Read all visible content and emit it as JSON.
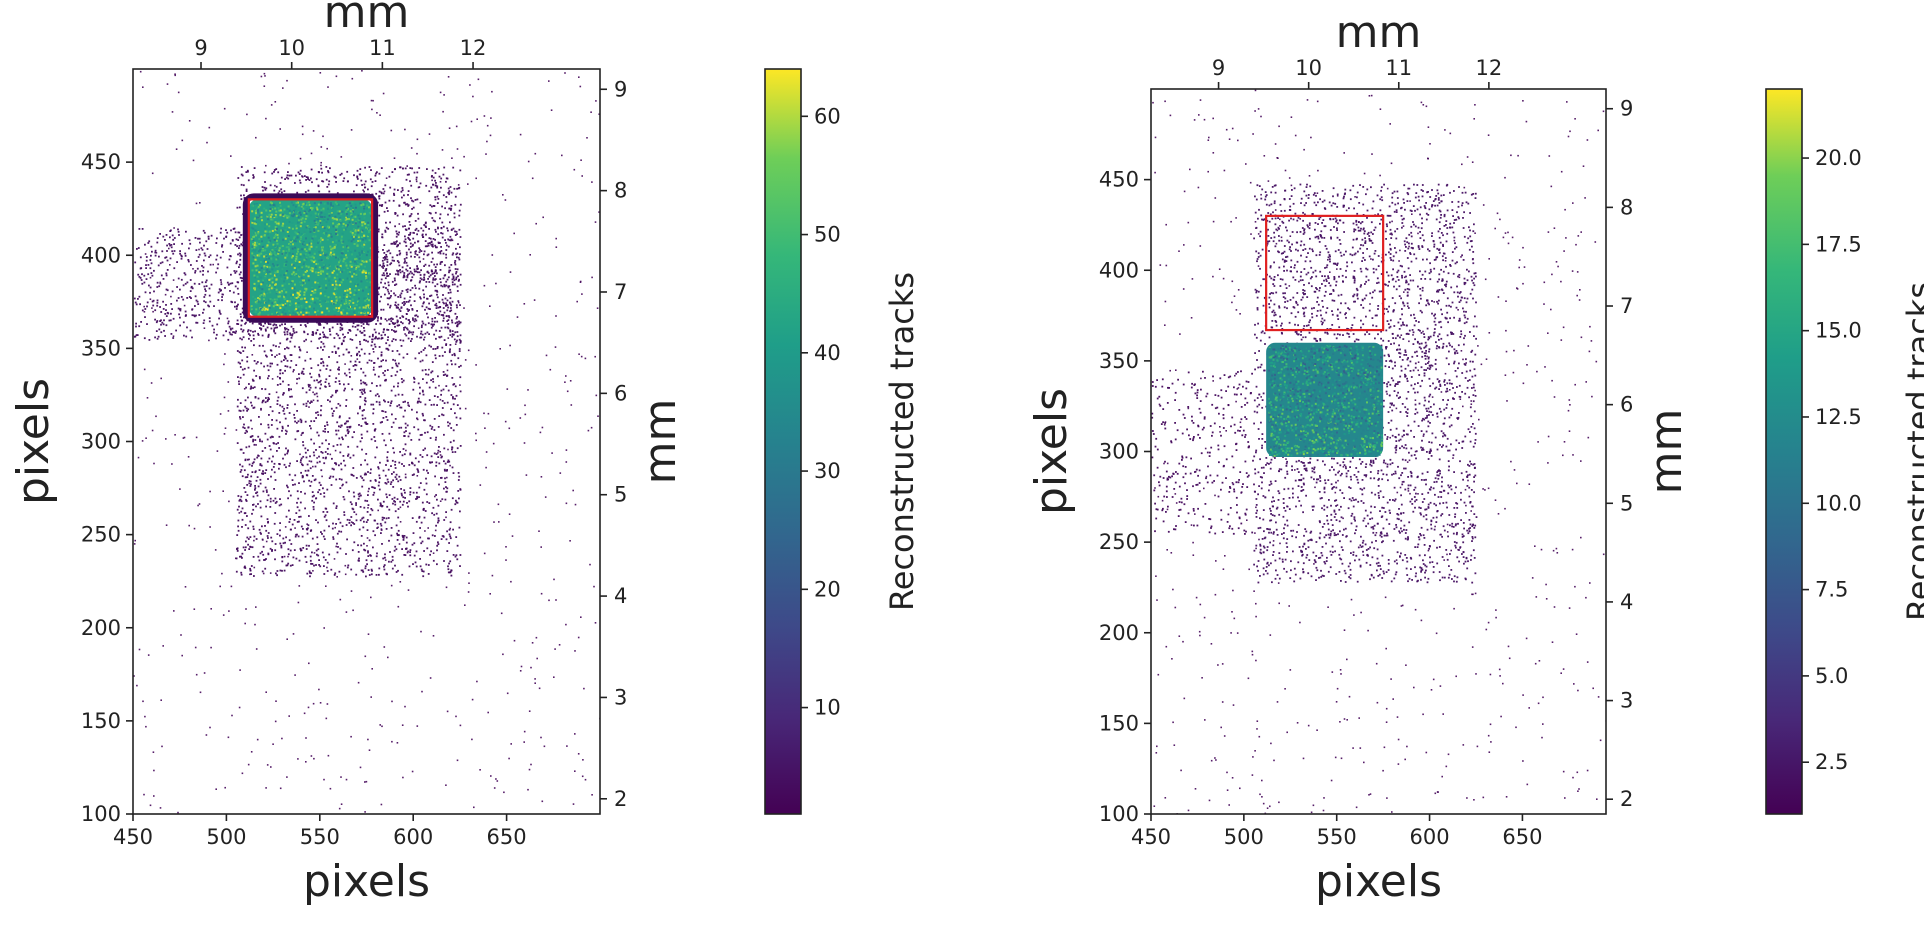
{
  "chart_data": [
    {
      "type": "heatmap",
      "title": "",
      "xlabel": "pixels",
      "ylabel": "pixels",
      "xlim": [
        450,
        700
      ],
      "ylim": [
        100,
        500
      ],
      "x_ticks": [
        450,
        500,
        550,
        600,
        650
      ],
      "y_ticks": [
        100,
        150,
        200,
        250,
        300,
        350,
        400,
        450
      ],
      "secondary_x_axis": {
        "label": "mm",
        "ticks": [
          9,
          10,
          11,
          12
        ],
        "range": [
          8.25,
          13.4
        ]
      },
      "secondary_y_axis": {
        "label": "mm",
        "ticks": [
          2,
          3,
          4,
          5,
          6,
          7,
          8,
          9
        ],
        "range": [
          1.85,
          9.2
        ]
      },
      "colorbar": {
        "label": "Reconstructed tracks",
        "range": [
          1,
          64
        ],
        "ticks": [
          10,
          20,
          30,
          40,
          50,
          60
        ],
        "colormap": "viridis"
      },
      "regions": [
        {
          "name": "main scatter rectangle",
          "x": [
            505,
            625
          ],
          "y": [
            228,
            448
          ],
          "level": 2
        },
        {
          "name": "left horizontal band",
          "x": [
            450,
            625
          ],
          "y": [
            355,
            415
          ],
          "level": 3
        },
        {
          "name": "high-count square",
          "x": [
            512,
            578
          ],
          "y": [
            367,
            430
          ],
          "level": 42
        }
      ],
      "red_box": {
        "x": [
          512,
          578
        ],
        "y": [
          367,
          430
        ]
      }
    },
    {
      "type": "heatmap",
      "title": "",
      "xlabel": "pixels",
      "ylabel": "pixels",
      "xlim": [
        450,
        695
      ],
      "ylim": [
        100,
        500
      ],
      "x_ticks": [
        450,
        500,
        550,
        600,
        650
      ],
      "y_ticks": [
        100,
        150,
        200,
        250,
        300,
        350,
        400,
        450
      ],
      "secondary_x_axis": {
        "label": "mm",
        "ticks": [
          9,
          10,
          11,
          12
        ],
        "range": [
          8.25,
          13.3
        ]
      },
      "secondary_y_axis": {
        "label": "mm",
        "ticks": [
          2,
          3,
          4,
          5,
          6,
          7,
          8,
          9
        ],
        "range": [
          1.85,
          9.2
        ]
      },
      "colorbar": {
        "label": "Reconstructed tracks",
        "range": [
          1,
          22
        ],
        "ticks": [
          2.5,
          5.0,
          7.5,
          10.0,
          12.5,
          15.0,
          17.5,
          20.0
        ],
        "tick_labels": [
          "2.5",
          "5.0",
          "7.5",
          "10.0",
          "12.5",
          "15.0",
          "17.5",
          "20.0"
        ],
        "colormap": "viridis"
      },
      "regions": [
        {
          "name": "main scatter rectangle",
          "x": [
            505,
            625
          ],
          "y": [
            228,
            448
          ],
          "level": 2
        },
        {
          "name": "left diffuse band",
          "x": [
            450,
            505
          ],
          "y": [
            255,
            345
          ],
          "level": 1
        },
        {
          "name": "high-count square",
          "x": [
            512,
            575
          ],
          "y": [
            297,
            360
          ],
          "level": 12
        }
      ],
      "red_box": {
        "x": [
          512,
          575
        ],
        "y": [
          367,
          430
        ]
      }
    }
  ]
}
